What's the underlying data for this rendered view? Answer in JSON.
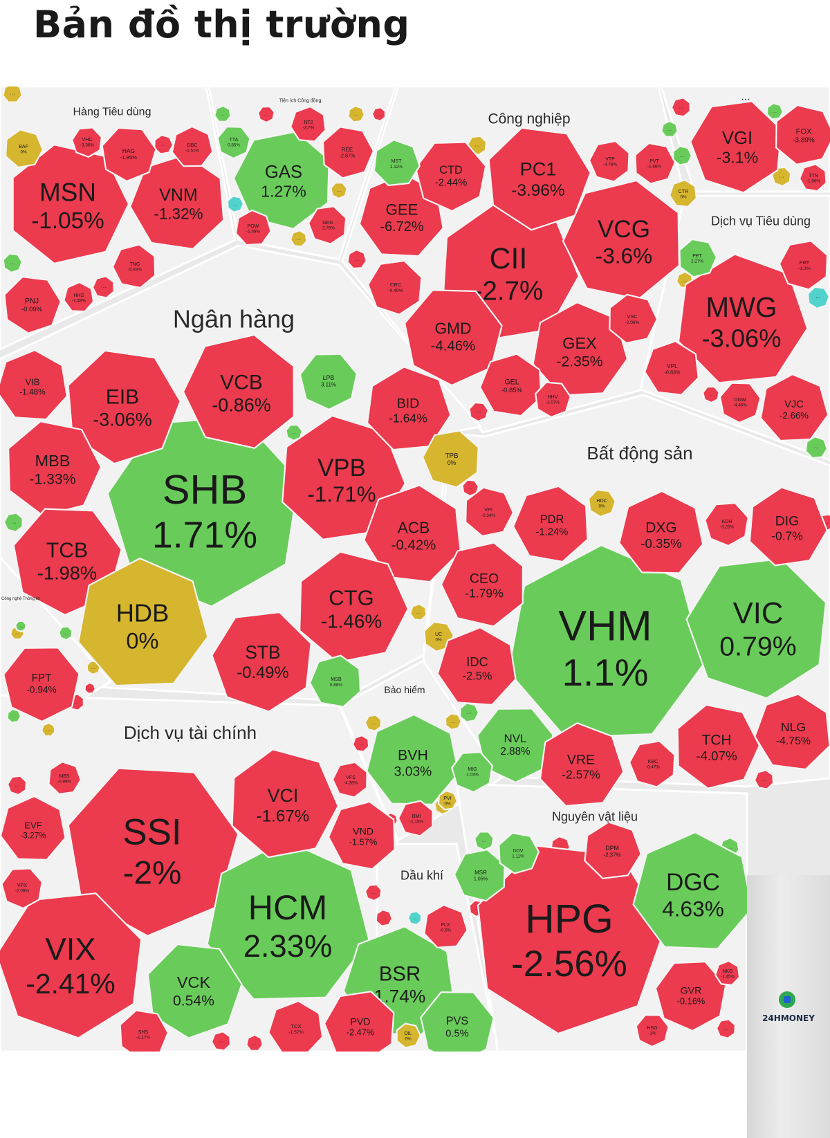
{
  "title": "Bản đồ thị trường",
  "brand": "24HMONEY",
  "colors": {
    "up": "#69cc5a",
    "down": "#ec3a4e",
    "flat": "#d6b52f",
    "ceiling": "#51d3cc"
  },
  "chart_data": {
    "type": "treemap",
    "sectors": [
      {
        "name": "Hàng Tiêu dùng",
        "stocks": [
          {
            "t": "MSN",
            "v": "-1.05%"
          },
          {
            "t": "VNM",
            "v": "-1.32%"
          },
          {
            "t": "HAG",
            "v": "-1.85%"
          },
          {
            "t": "DBC",
            "v": "-1.51%"
          },
          {
            "t": "VHC",
            "v": "-3.36%"
          },
          {
            "t": "BAF",
            "v": "0%"
          },
          {
            "t": "TNG",
            "v": "-5.83%"
          },
          {
            "t": "PNJ",
            "v": "-0.09%"
          },
          {
            "t": "HHS",
            "v": "-1.48%"
          }
        ]
      },
      {
        "name": "Tiện ích Công đồng",
        "stocks": [
          {
            "t": "GAS",
            "v": "1.27%"
          },
          {
            "t": "REE",
            "v": "-2.87%"
          },
          {
            "t": "NT2",
            "v": "-3.7%"
          },
          {
            "t": "TTA",
            "v": "0.85%"
          },
          {
            "t": "POW",
            "v": "-1.56%"
          },
          {
            "t": "GEG",
            "v": "-2.76%"
          }
        ]
      },
      {
        "name": "Công nghiệp",
        "stocks": [
          {
            "t": "CII",
            "v": "-2.7%"
          },
          {
            "t": "VCG",
            "v": "-3.6%"
          },
          {
            "t": "PC1",
            "v": "-3.96%"
          },
          {
            "t": "GEE",
            "v": "-6.72%"
          },
          {
            "t": "CTD",
            "v": "-2.44%"
          },
          {
            "t": "MST",
            "v": "1.12%"
          },
          {
            "t": "VTP",
            "v": "-4.78%"
          },
          {
            "t": "PVT",
            "v": "-1.86%"
          },
          {
            "t": "CTR",
            "v": "0%"
          },
          {
            "t": "GMD",
            "v": "-4.46%"
          },
          {
            "t": "GEX",
            "v": "-2.35%"
          },
          {
            "t": "CRC",
            "v": "-0.49%"
          },
          {
            "t": "VSC",
            "v": "-2.06%"
          },
          {
            "t": "GEL",
            "v": "-0.85%"
          },
          {
            "t": "HHV",
            "v": "-2.07%"
          }
        ]
      },
      {
        "name": "...",
        "stocks": [
          {
            "t": "VGI",
            "v": "-3.1%"
          },
          {
            "t": "FOX",
            "v": "-3.89%"
          },
          {
            "t": "TTN",
            "v": "-1.86%"
          }
        ]
      },
      {
        "name": "Dịch vụ Tiêu dùng",
        "stocks": [
          {
            "t": "MWG",
            "v": "-3.06%"
          },
          {
            "t": "FRT",
            "v": "-1.3%"
          },
          {
            "t": "PET",
            "v": "2.27%"
          },
          {
            "t": "VPL",
            "v": "-0.83%"
          },
          {
            "t": "DGW",
            "v": "-4.46%"
          },
          {
            "t": "VJC",
            "v": "-2.66%"
          }
        ]
      },
      {
        "name": "Ngân hàng",
        "stocks": [
          {
            "t": "SHB",
            "v": "1.71%"
          },
          {
            "t": "VPB",
            "v": "-1.71%"
          },
          {
            "t": "VCB",
            "v": "-0.86%"
          },
          {
            "t": "EIB",
            "v": "-3.06%"
          },
          {
            "t": "VIB",
            "v": "-1.48%"
          },
          {
            "t": "LPB",
            "v": "3.11%"
          },
          {
            "t": "BID",
            "v": "-1.64%"
          },
          {
            "t": "TPB",
            "v": "0%"
          },
          {
            "t": "MBB",
            "v": "-1.33%"
          },
          {
            "t": "ACB",
            "v": "-0.42%"
          },
          {
            "t": "TCB",
            "v": "-1.98%"
          },
          {
            "t": "HDB",
            "v": "0%"
          },
          {
            "t": "STB",
            "v": "-0.49%"
          },
          {
            "t": "CTG",
            "v": "-1.46%"
          },
          {
            "t": "MSB",
            "v": "0.88%"
          }
        ]
      },
      {
        "name": "Bất động sản",
        "stocks": [
          {
            "t": "VHM",
            "v": "1.1%"
          },
          {
            "t": "VIC",
            "v": "0.79%"
          },
          {
            "t": "VPI",
            "v": "-0.34%"
          },
          {
            "t": "PDR",
            "v": "-1.24%"
          },
          {
            "t": "HDC",
            "v": "0%"
          },
          {
            "t": "DXG",
            "v": "-0.35%"
          },
          {
            "t": "KDH",
            "v": "-3.25%"
          },
          {
            "t": "DIG",
            "v": "-0.7%"
          },
          {
            "t": "CEO",
            "v": "-1.79%"
          },
          {
            "t": "UC",
            "v": "0%"
          },
          {
            "t": "IDC",
            "v": "-2.5%"
          },
          {
            "t": "NVL",
            "v": "2.88%"
          },
          {
            "t": "VRE",
            "v": "-2.57%"
          },
          {
            "t": "KBC",
            "v": "-0.47%"
          },
          {
            "t": "TCH",
            "v": "-4.07%"
          },
          {
            "t": "NLG",
            "v": "-4.75%"
          }
        ]
      },
      {
        "name": "Công nghệ Thông tin",
        "stocks": [
          {
            "t": "FPT",
            "v": "-0.94%"
          }
        ]
      },
      {
        "name": "Bảo hiểm",
        "stocks": [
          {
            "t": "BVH",
            "v": "3.03%"
          },
          {
            "t": "MIG",
            "v": "1.03%"
          },
          {
            "t": "PVI",
            "v": "0%"
          },
          {
            "t": "BMI",
            "v": "-1.15%"
          }
        ]
      },
      {
        "name": "Dịch vụ tài chính",
        "stocks": [
          {
            "t": "SSI",
            "v": "-2%"
          },
          {
            "t": "HCM",
            "v": "2.33%"
          },
          {
            "t": "VIX",
            "v": "-2.41%"
          },
          {
            "t": "VCI",
            "v": "-1.67%"
          },
          {
            "t": "VND",
            "v": "-1.57%"
          },
          {
            "t": "VCK",
            "v": "0.54%"
          },
          {
            "t": "EVF",
            "v": "-3.27%"
          },
          {
            "t": "VPX",
            "v": "-2.09%"
          },
          {
            "t": "MBS",
            "v": "-0.99%"
          },
          {
            "t": "VFS",
            "v": "-4.39%"
          },
          {
            "t": "SHS",
            "v": "-1.17%"
          },
          {
            "t": "TCX",
            "v": "-1.57%"
          }
        ]
      },
      {
        "name": "Dầu khí",
        "stocks": [
          {
            "t": "BSR",
            "v": "1.74%"
          },
          {
            "t": "PVS",
            "v": "0.5%"
          },
          {
            "t": "PLX",
            "v": "-0.5%"
          },
          {
            "t": "PVD",
            "v": "-2.47%"
          },
          {
            "t": "OIL",
            "v": "0%"
          }
        ]
      },
      {
        "name": "Nguyên vật liệu",
        "stocks": [
          {
            "t": "HPG",
            "v": "-2.56%"
          },
          {
            "t": "DGC",
            "v": "4.63%"
          },
          {
            "t": "GVR",
            "v": "-0.16%"
          },
          {
            "t": "DPM",
            "v": "-2.37%"
          },
          {
            "t": "MSR",
            "v": "1.05%"
          },
          {
            "t": "DDV",
            "v": "1.11%"
          },
          {
            "t": "NKG",
            "v": "-1.45%"
          },
          {
            "t": "HSG",
            "v": "-1%"
          }
        ]
      }
    ]
  }
}
